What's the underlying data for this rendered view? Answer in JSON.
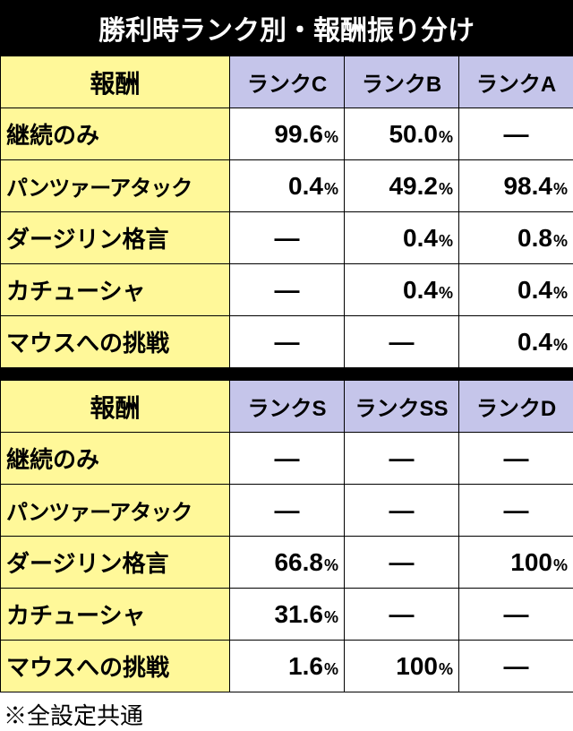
{
  "title": "勝利時ランク別・報酬振り分け",
  "footnote": "※全設定共通",
  "colors": {
    "title_bg": "#000000",
    "title_fg": "#ffffff",
    "reward_header_bg": "#fff899",
    "rank_header_bg": "#c5c5ea",
    "row_label_bg": "#fff899",
    "cell_bg": "#ffffff",
    "border": "#000000"
  },
  "tables": [
    {
      "reward_header": "報酬",
      "rank_headers": [
        "ランクC",
        "ランクB",
        "ランクA"
      ],
      "rows": [
        {
          "label": "継続のみ",
          "vals": [
            "99.6",
            "50.0",
            null
          ]
        },
        {
          "label": "パンツァーアタック",
          "vals": [
            "0.4",
            "49.2",
            "98.4"
          ],
          "small": true
        },
        {
          "label": "ダージリン格言",
          "vals": [
            null,
            "0.4",
            "0.8"
          ]
        },
        {
          "label": "カチューシャ",
          "vals": [
            null,
            "0.4",
            "0.4"
          ]
        },
        {
          "label": "マウスへの挑戦",
          "vals": [
            null,
            null,
            "0.4"
          ]
        }
      ]
    },
    {
      "reward_header": "報酬",
      "rank_headers": [
        "ランクS",
        "ランクSS",
        "ランクD"
      ],
      "rows": [
        {
          "label": "継続のみ",
          "vals": [
            null,
            null,
            null
          ]
        },
        {
          "label": "パンツァーアタック",
          "vals": [
            null,
            null,
            null
          ],
          "small": true
        },
        {
          "label": "ダージリン格言",
          "vals": [
            "66.8",
            null,
            "100"
          ]
        },
        {
          "label": "カチューシャ",
          "vals": [
            "31.6",
            null,
            null
          ]
        },
        {
          "label": "マウスへの挑戦",
          "vals": [
            "1.6",
            "100",
            null
          ]
        }
      ]
    }
  ]
}
